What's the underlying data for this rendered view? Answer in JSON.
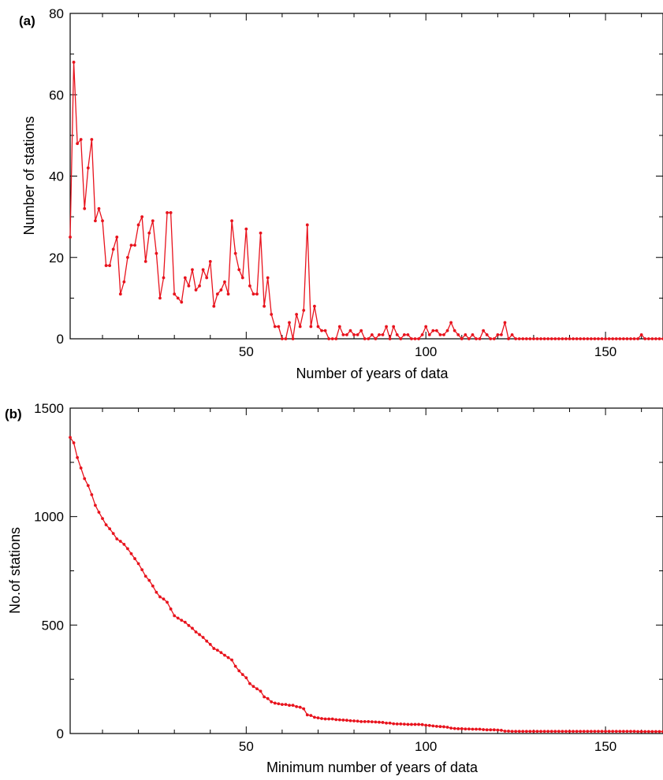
{
  "chart_data": [
    {
      "type": "line",
      "panel_label": "(a)",
      "xlabel": "Number of years of data",
      "ylabel": "Number of stations",
      "xlim": [
        1,
        166
      ],
      "ylim": [
        0,
        80
      ],
      "xticks": [
        50,
        100,
        150
      ],
      "yticks": [
        0,
        20,
        40,
        60,
        80
      ],
      "color": "#e8131d",
      "markers": true,
      "x_start": 1,
      "values": [
        25,
        68,
        48,
        49,
        32,
        42,
        49,
        29,
        32,
        29,
        18,
        18,
        22,
        25,
        11,
        14,
        20,
        23,
        23,
        28,
        30,
        19,
        26,
        29,
        21,
        10,
        15,
        31,
        31,
        11,
        10,
        9,
        15,
        13,
        17,
        12,
        13,
        17,
        15,
        19,
        8,
        11,
        12,
        14,
        11,
        29,
        21,
        17,
        15,
        27,
        13,
        11,
        11,
        26,
        8,
        15,
        6,
        3,
        3,
        0,
        0,
        4,
        0,
        6,
        3,
        7,
        28,
        3,
        8,
        3,
        2,
        2,
        0,
        0,
        0,
        3,
        1,
        1,
        2,
        1,
        1,
        2,
        0,
        0,
        1,
        0,
        1,
        1,
        3,
        0,
        3,
        1,
        0,
        1,
        1,
        0,
        0,
        0,
        1,
        3,
        1,
        2,
        2,
        1,
        1,
        2,
        4,
        2,
        1,
        0,
        1,
        0,
        1,
        0,
        0,
        2,
        1,
        0,
        0,
        1,
        1,
        4,
        0,
        1,
        0,
        0,
        0,
        0,
        0,
        0,
        0,
        0,
        0,
        0,
        0,
        0,
        0,
        0,
        0,
        0,
        0,
        0,
        0,
        0,
        0,
        0,
        0,
        0,
        0,
        0,
        0,
        0,
        0,
        0,
        0,
        0,
        0,
        0,
        0,
        1,
        0,
        0,
        0,
        0,
        0,
        0
      ]
    },
    {
      "type": "line",
      "panel_label": "(b)",
      "xlabel": "Minimum number of years of data",
      "ylabel": "No.of stations",
      "xlim": [
        1,
        166
      ],
      "ylim": [
        0,
        1500
      ],
      "xticks": [
        50,
        100,
        150
      ],
      "yticks": [
        0,
        500,
        1000,
        1500
      ],
      "color": "#e8131d",
      "markers": true,
      "x_start": 1,
      "values": [
        1365,
        1340,
        1272,
        1224,
        1175,
        1143,
        1101,
        1052,
        1020,
        991,
        962,
        944,
        922,
        897,
        886,
        872,
        852,
        829,
        806,
        783,
        755,
        725,
        706,
        680,
        651,
        630,
        620,
        605,
        574,
        543,
        532,
        522,
        513,
        498,
        485,
        468,
        456,
        443,
        426,
        411,
        392,
        384,
        373,
        361,
        350,
        339,
        310,
        289,
        272,
        257,
        230,
        217,
        206,
        195,
        169,
        161,
        146,
        140,
        137,
        134,
        134,
        130,
        130,
        124,
        121,
        114,
        86,
        83,
        75,
        72,
        69,
        67,
        67,
        67,
        64,
        63,
        62,
        61,
        59,
        58,
        57,
        55,
        55,
        55,
        54,
        53,
        52,
        51,
        48,
        48,
        45,
        44,
        44,
        43,
        42,
        42,
        42,
        42,
        41,
        38,
        37,
        35,
        33,
        32,
        31,
        29,
        25,
        23,
        22,
        22,
        21,
        21,
        20,
        20,
        20,
        18,
        17,
        17,
        17,
        16,
        15,
        11,
        11,
        10,
        10,
        10,
        10,
        10,
        10,
        10,
        10,
        10,
        10,
        10,
        10,
        10,
        10,
        10,
        10,
        10,
        10,
        10,
        10,
        10,
        10,
        10,
        10,
        10,
        10,
        10,
        10,
        10,
        10,
        10,
        10,
        10,
        10,
        10,
        9,
        9,
        9,
        9,
        9,
        9,
        9,
        9
      ]
    }
  ]
}
